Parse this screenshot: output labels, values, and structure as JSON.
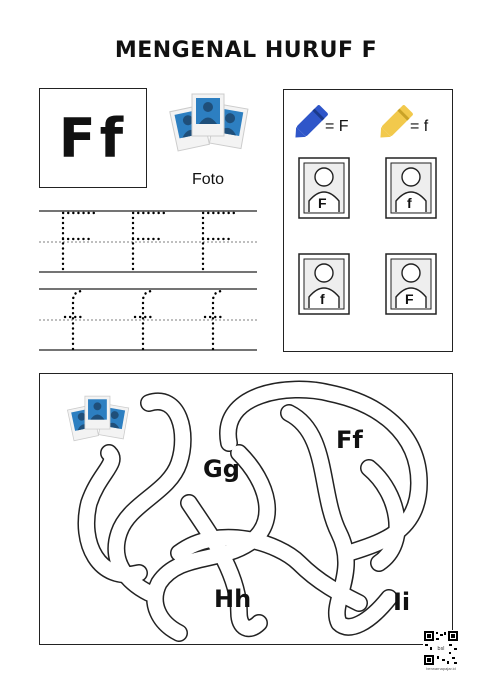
{
  "title": "MENGENAL HURUF F",
  "letter_card": {
    "text": "Ff"
  },
  "photo_word": "Foto",
  "color_key": {
    "blue": {
      "label": "= F",
      "color": "#2f56c9",
      "icon": "crayon-icon"
    },
    "yellow": {
      "label": "= f",
      "color": "#f2c94c",
      "icon": "crayon-icon"
    }
  },
  "photo_frames": [
    {
      "letter": "F"
    },
    {
      "letter": "f"
    },
    {
      "letter": "f"
    },
    {
      "letter": "F"
    }
  ],
  "maze": {
    "labels": {
      "gg": "Gg",
      "ff": "Ff",
      "hh": "Hh",
      "ii": "Ii"
    }
  },
  "qr": {
    "center": "bsl",
    "caption": "berwarnapajar.id"
  },
  "colors": {
    "photo_blue": "#2d7fc1",
    "photo_dark": "#1f4f7a",
    "frame_bg": "#eeeeee"
  }
}
